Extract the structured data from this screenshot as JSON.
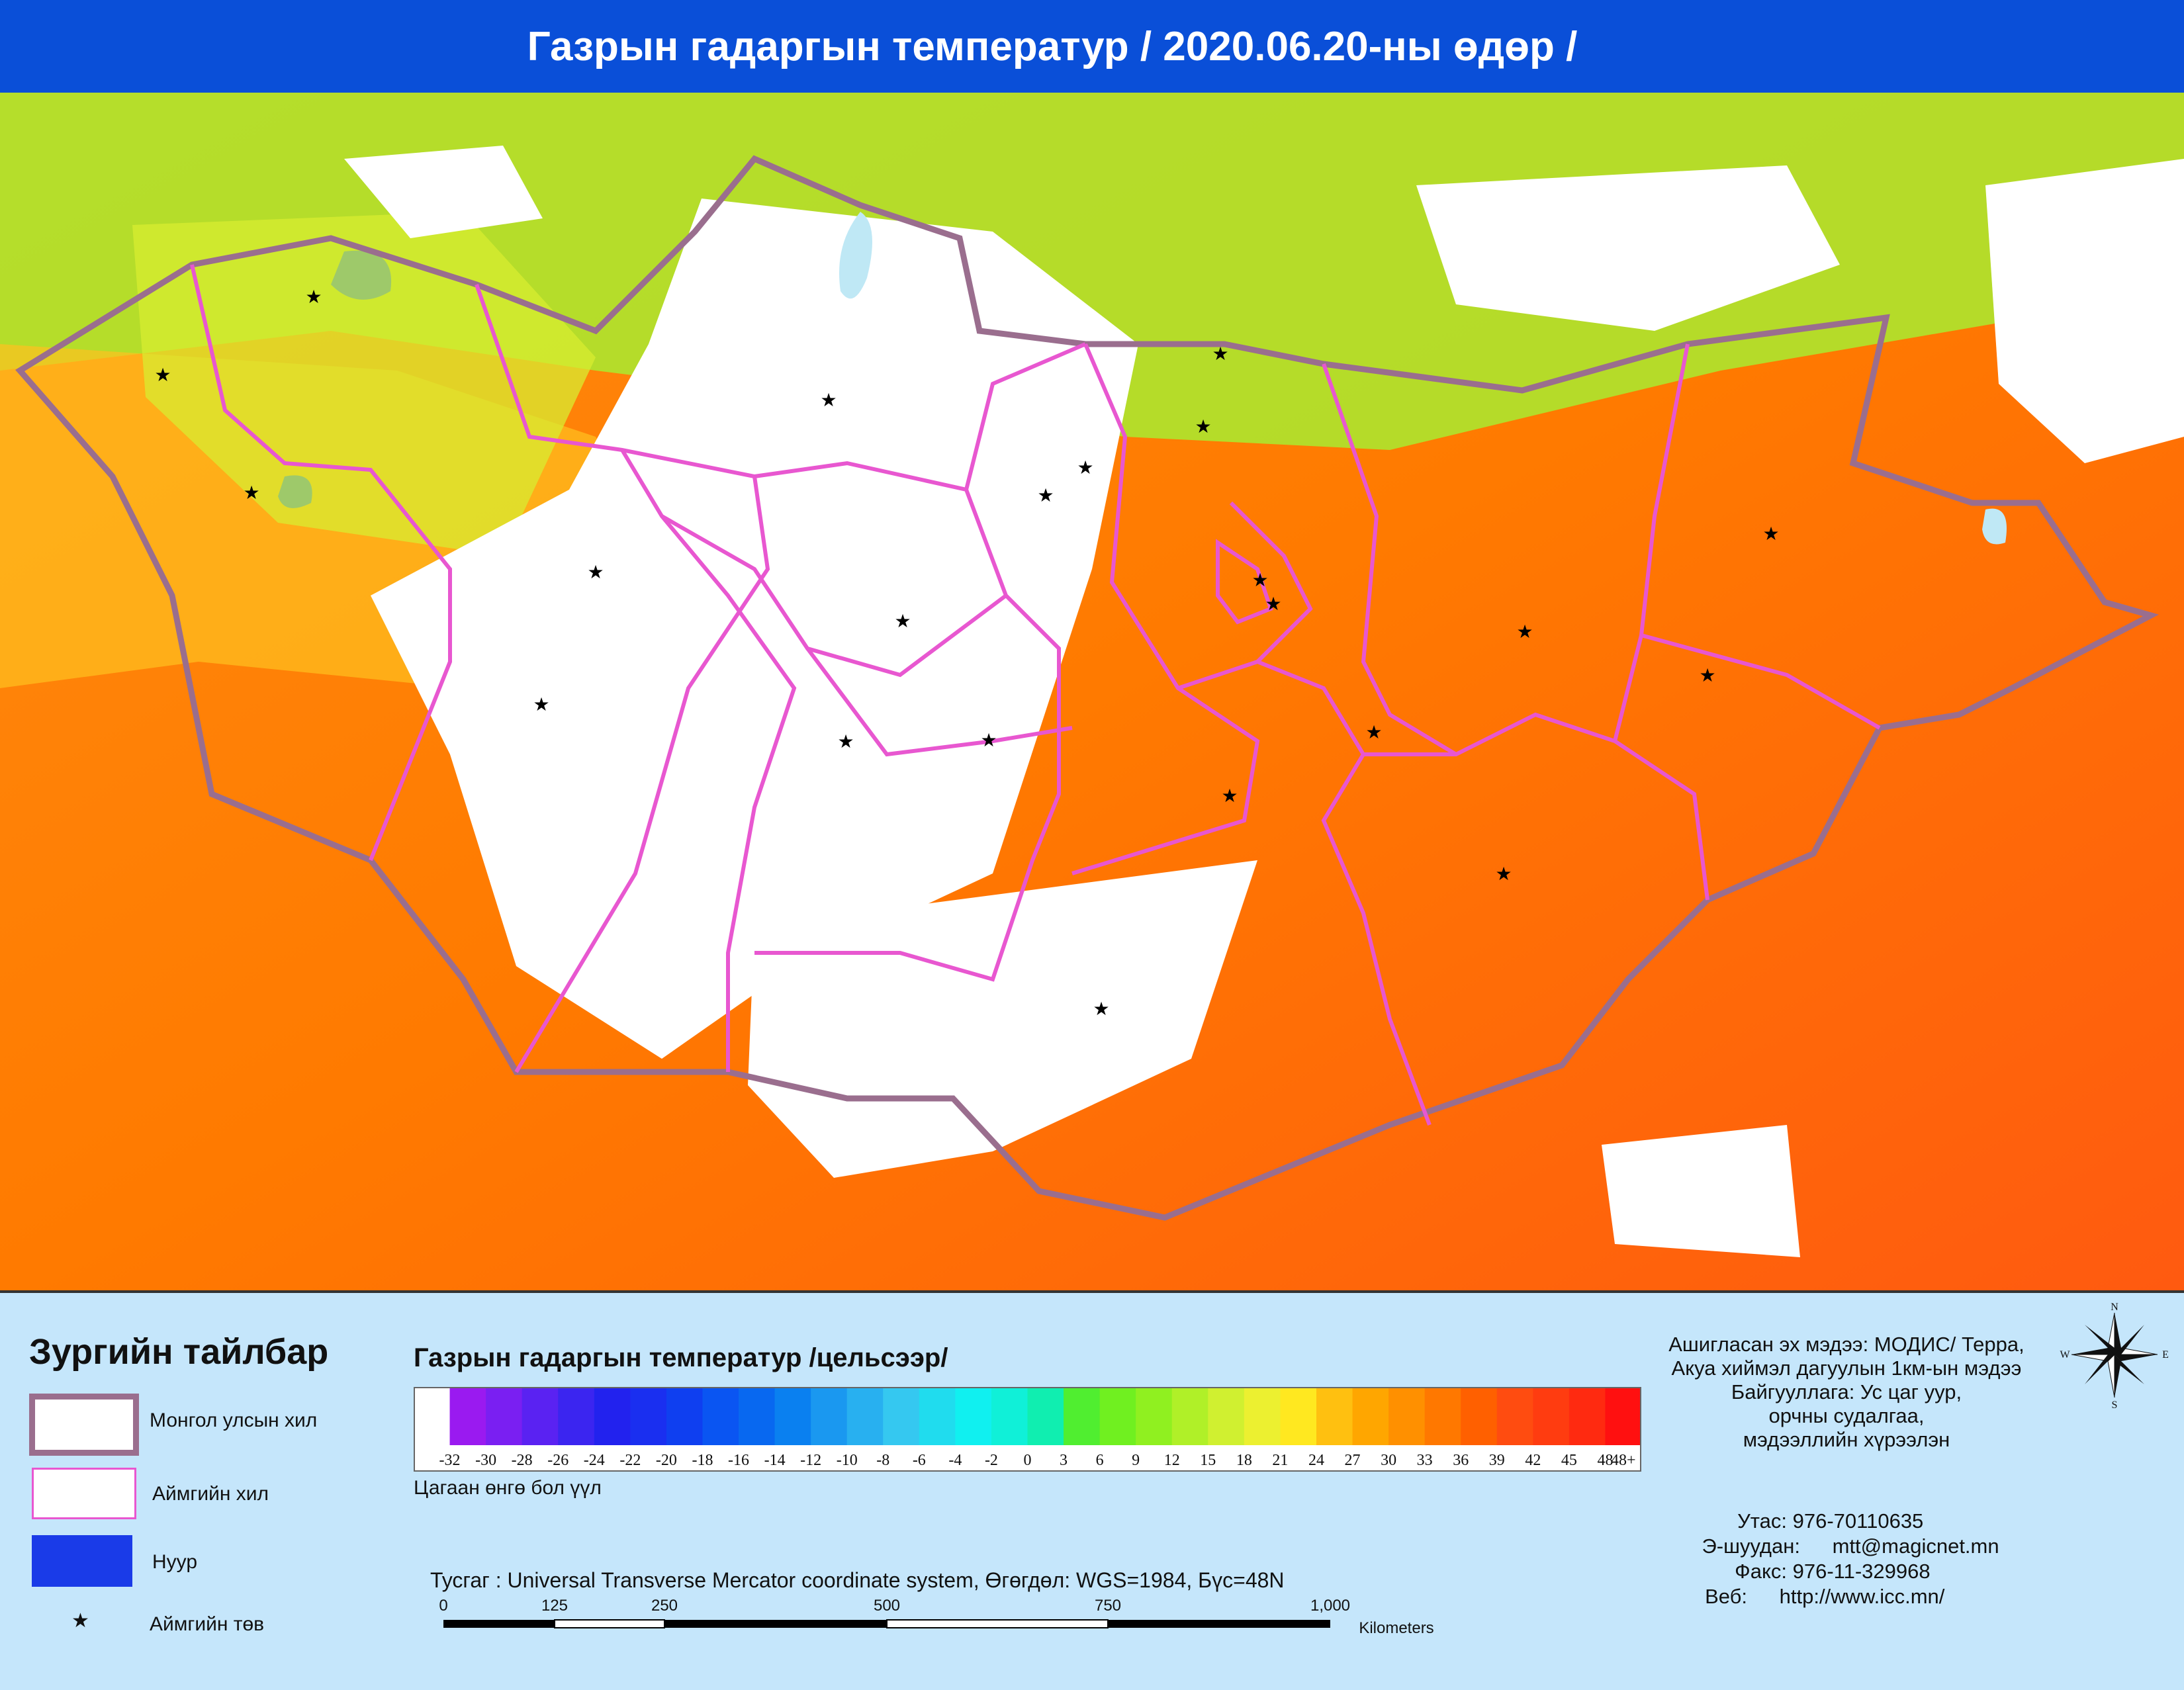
{
  "title": "Газрын гадаргын температур / 2020.06.20-ны өдөр /",
  "legend": {
    "heading": "Зургийн тайлбар",
    "items": [
      {
        "label": "Монгол улсын хил",
        "symbol": "country-border"
      },
      {
        "label": "Аймгийн хил",
        "symbol": "province-border"
      },
      {
        "label": "Нуур",
        "symbol": "lake"
      },
      {
        "label": "Аймгийн төв",
        "symbol": "star"
      }
    ],
    "colorbar_title": "Газрын гадаргын температур /цельсээр/",
    "colorbar_ticks": [
      "-32",
      "-30",
      "-28",
      "-26",
      "-24",
      "-22",
      "-20",
      "-18",
      "-16",
      "-14",
      "-12",
      "-10",
      "-8",
      "-6",
      "-4",
      "-2",
      "0",
      "3",
      "6",
      "9",
      "12",
      "15",
      "18",
      "21",
      "24",
      "27",
      "30",
      "33",
      "36",
      "39",
      "42",
      "45",
      "48",
      "48+"
    ],
    "colorbar_colors": [
      "#ffffff",
      "#9a1af0",
      "#7a1ff2",
      "#5a22f2",
      "#3b25f0",
      "#2222ee",
      "#1a2ff0",
      "#0f3ff0",
      "#0a55f2",
      "#0868f0",
      "#0a80f0",
      "#1a98f0",
      "#28b0f0",
      "#35c8f0",
      "#20dcee",
      "#10f0f0",
      "#10f0d8",
      "#10eeb0",
      "#50ee30",
      "#70f020",
      "#90f020",
      "#b0f028",
      "#d0f030",
      "#ecf030",
      "#ffe820",
      "#ffc010",
      "#ffa600",
      "#ff9000",
      "#ff7800",
      "#ff6000",
      "#ff4c10",
      "#ff3c10",
      "#ff2a10",
      "#ff1010"
    ],
    "white_note": "Цагаан өнгө бол үүл",
    "projection": "Тусгаг : Universal Transverse Mercator coordinate system, Өгөгдөл: WGS=1984, Бүс=48N",
    "scale_labels": [
      "0",
      "125",
      "250",
      "500",
      "750",
      "1,000"
    ],
    "scale_unit": "Kilometers"
  },
  "info": {
    "source_lines": [
      "Ашигласан эх мэдээ: МОДИС/ Терра,",
      "Акуа хиймэл дагуулын 1км-ын мэдээ",
      "Байгууллага: Ус цаг уур,",
      "орчны судалгаа,",
      "мэдээллийн хүрээлэн"
    ],
    "phone_label": "Утас:",
    "phone": "976-70110635",
    "email_label": "Э-шуудан:",
    "email": "mtt@magicnet.mn",
    "fax_label": "Факс:",
    "fax": "976-11-329968",
    "web_label": "Веб:",
    "web": "http://www.icc.mn/"
  },
  "compass": {
    "n": "N",
    "s": "S",
    "e": "E",
    "w": "W"
  },
  "colors": {
    "title_bar": "#0a4fd8",
    "country_border": "#9a6e8e",
    "province_border": "#e857d0",
    "lake": "#1a3be8",
    "legend_bg": "#c5e6fb"
  }
}
